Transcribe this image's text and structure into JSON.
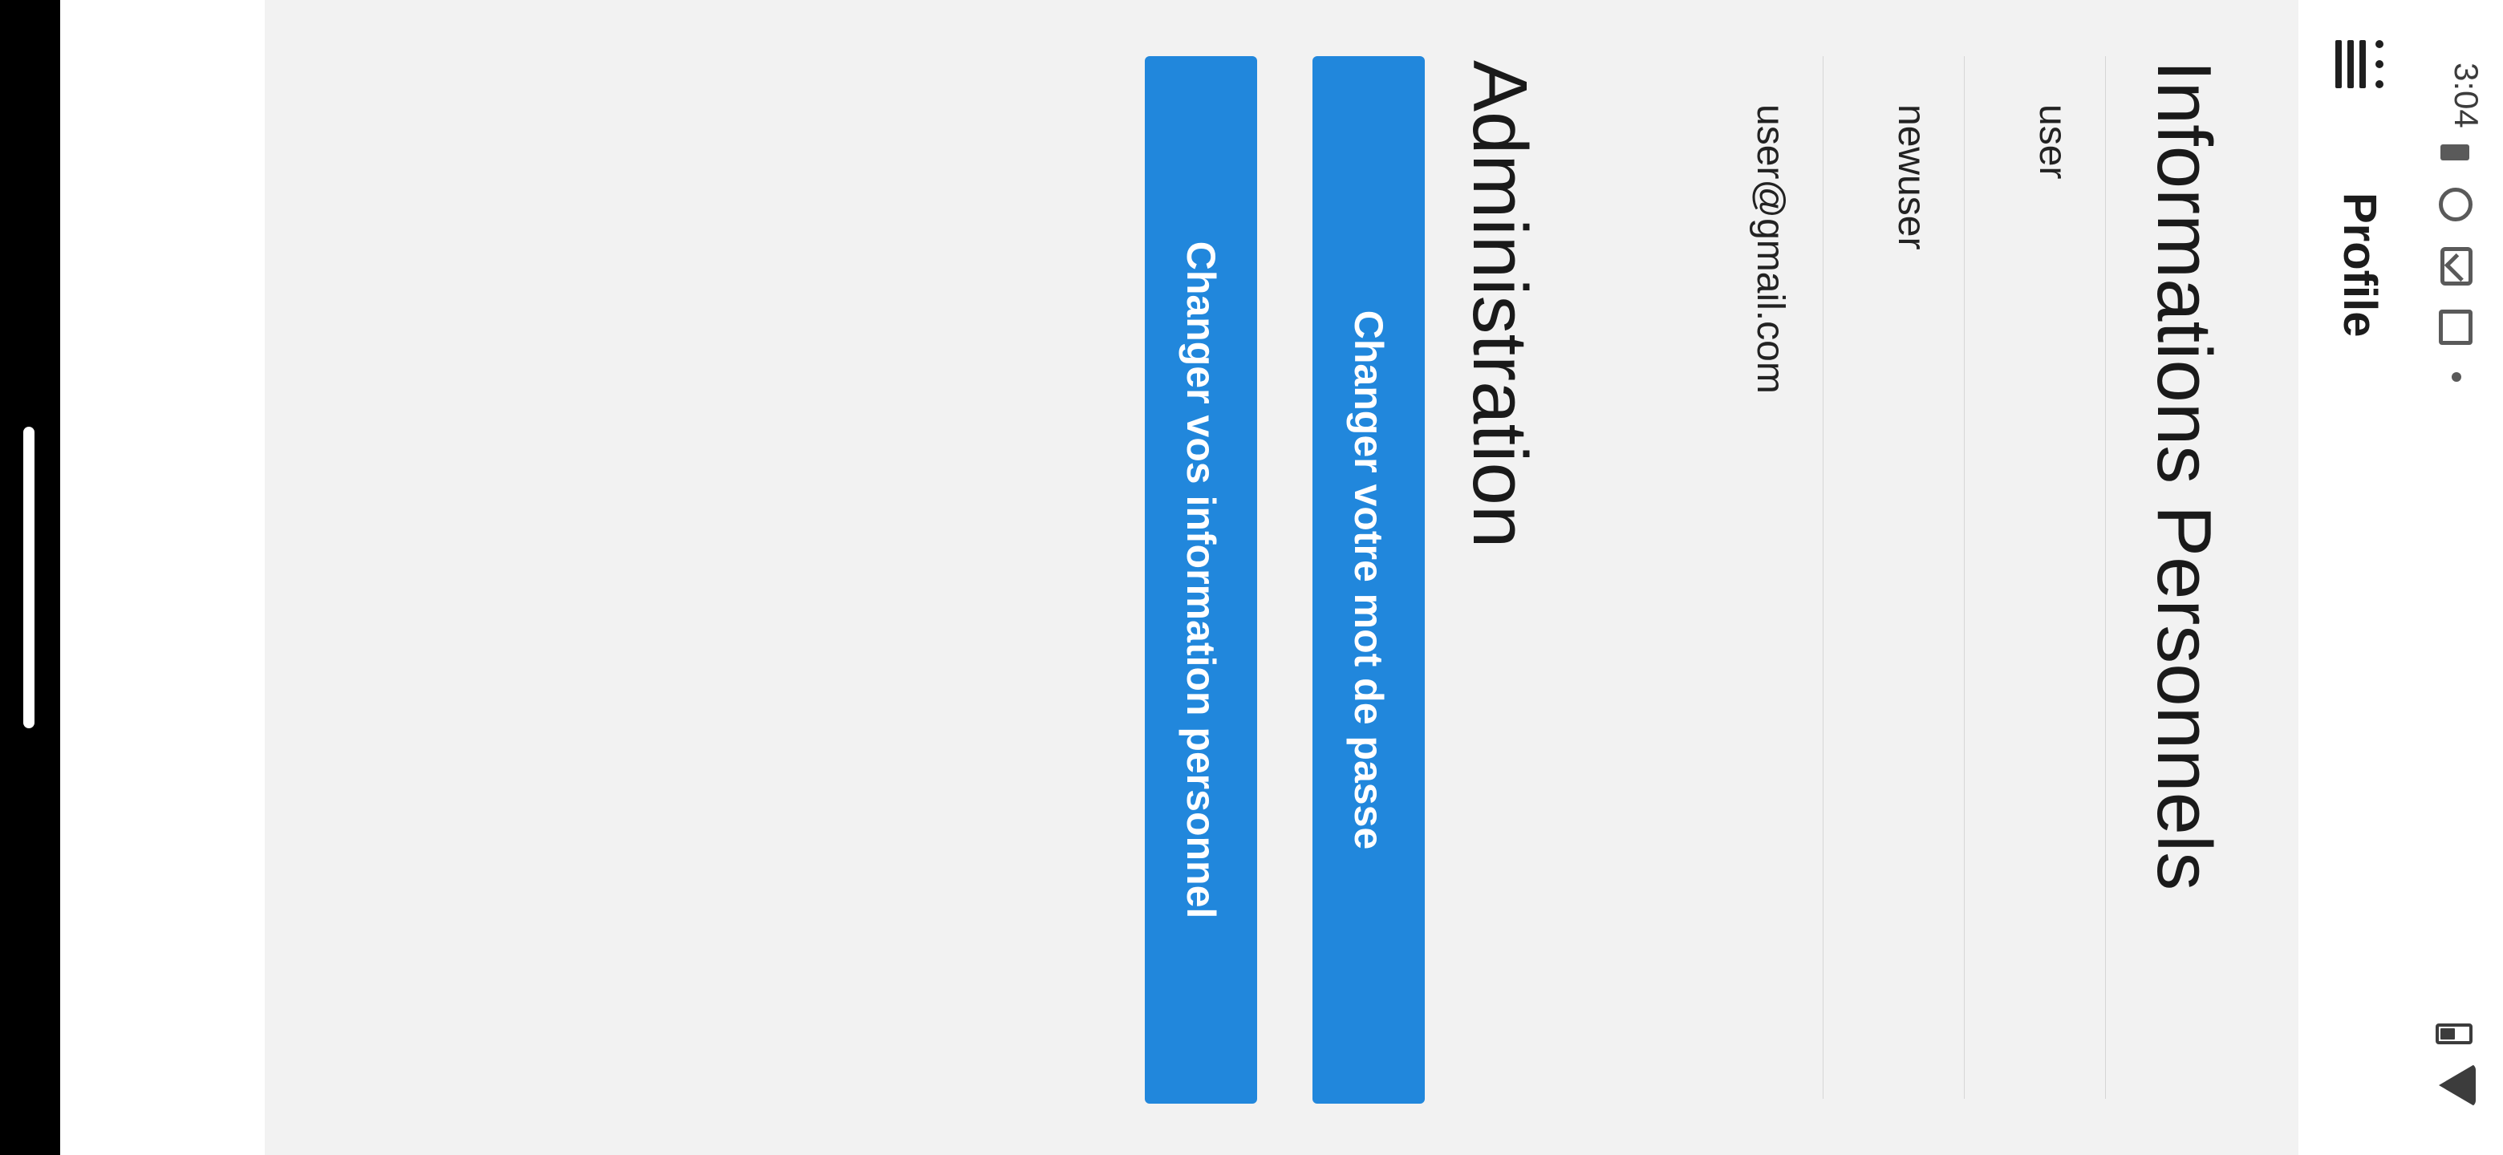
{
  "status_bar": {
    "time": "3:04",
    "icons": [
      "battery-saver-icon",
      "face-icon",
      "gmail-icon",
      "screen-share-icon",
      "dot-icon",
      "wifi-icon",
      "battery-icon"
    ]
  },
  "header": {
    "menu_icon": "menu-icon",
    "title": "Profile"
  },
  "personal_info": {
    "title": "Informations Personnels",
    "username": "user",
    "name": "newuser",
    "email": "user@gmail.com"
  },
  "administration": {
    "title": "Administration",
    "change_password_label": "Changer votre mot de passe",
    "change_info_label": "Changer vos information personnel"
  },
  "colors": {
    "primary_button": "#2187dc",
    "content_background": "#f2f2f2",
    "nav_bar": "#000000"
  }
}
